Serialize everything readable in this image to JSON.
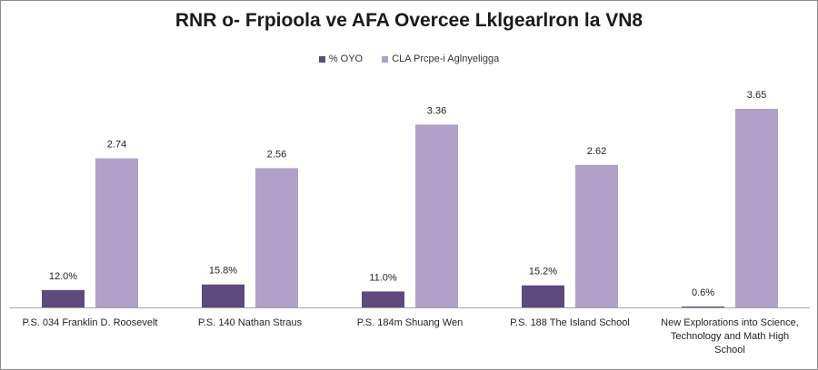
{
  "chart_data": {
    "type": "bar",
    "title": "RNR o- Frpioola ve AFA Overcee Lklgearlron la VN8",
    "legend_position": "top",
    "grid": false,
    "categories": [
      [
        "P.S. 034 Franklin D. Roosevelt"
      ],
      [
        "P.S. 140 Nathan Straus"
      ],
      [
        "P.S. 184m Shuang Wen"
      ],
      [
        "P.S. 188 The Island School"
      ],
      [
        "New Explorations into Science,",
        "Technology and Math High",
        "School"
      ]
    ],
    "series": [
      {
        "name": "% OYO",
        "color": "#5e4a7c",
        "values": [
          12.0,
          15.8,
          11.0,
          15.2,
          0.6
        ],
        "labels": [
          "12.0%",
          "15.8%",
          "11.0%",
          "15.2%",
          "0.6%"
        ],
        "scale_max": 150
      },
      {
        "name": "CLA Prcpe-i Aglnyeligga",
        "color": "#b1a0c7",
        "values": [
          2.74,
          2.56,
          3.36,
          2.62,
          3.65
        ],
        "labels": [
          "2.74",
          "2.56",
          "3.36",
          "2.62",
          "3.65"
        ],
        "scale_max": 4.0
      }
    ]
  }
}
